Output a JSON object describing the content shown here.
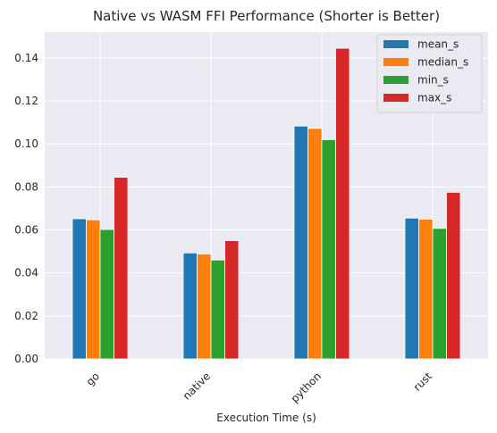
{
  "chart_data": {
    "type": "bar",
    "title": "Native vs WASM FFI Performance (Shorter is Better)",
    "xlabel": "Execution Time (s)",
    "ylabel": "",
    "categories": [
      "go",
      "native",
      "python",
      "rust"
    ],
    "ylim": [
      0,
      0.152
    ],
    "yticks": [
      "0.00",
      "0.02",
      "0.04",
      "0.06",
      "0.08",
      "0.10",
      "0.12",
      "0.14"
    ],
    "grid": true,
    "legend_position": "top-right",
    "series": [
      {
        "name": "mean_s",
        "color": "#1f77b4",
        "values": [
          0.0652,
          0.0493,
          0.1083,
          0.0655
        ]
      },
      {
        "name": "median_s",
        "color": "#ff7f0e",
        "values": [
          0.0647,
          0.0488,
          0.1072,
          0.065
        ]
      },
      {
        "name": "min_s",
        "color": "#2ca02c",
        "values": [
          0.0602,
          0.046,
          0.102,
          0.0607
        ]
      },
      {
        "name": "max_s",
        "color": "#d62728",
        "values": [
          0.0845,
          0.055,
          0.1445,
          0.0775
        ]
      }
    ]
  }
}
